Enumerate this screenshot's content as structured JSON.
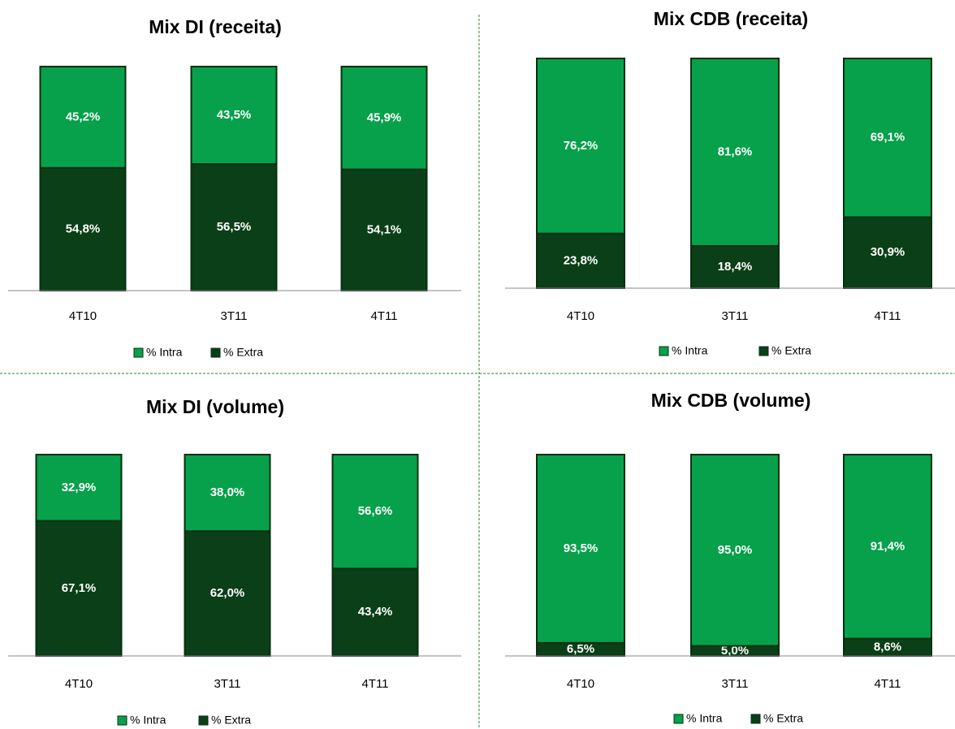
{
  "chart_data": [
    {
      "type": "bar",
      "stacked": true,
      "title": "Mix DI (receita)",
      "categories": [
        "4T10",
        "3T11",
        "4T11"
      ],
      "series": [
        {
          "name": "% Intra",
          "color": "#07a04b",
          "values": [
            45.2,
            43.5,
            45.9
          ],
          "value_labels": [
            "45,2%",
            "43,5%",
            "45,9%"
          ]
        },
        {
          "name": "% Extra",
          "color": "#0b3f17",
          "values": [
            54.8,
            56.5,
            54.1
          ],
          "value_labels": [
            "54,8%",
            "56,5%",
            "54,1%"
          ]
        }
      ]
    },
    {
      "type": "bar",
      "stacked": true,
      "title": "Mix CDB (receita)",
      "categories": [
        "4T10",
        "3T11",
        "4T11"
      ],
      "series": [
        {
          "name": "% Intra",
          "color": "#07a04b",
          "values": [
            76.2,
            81.6,
            69.1
          ],
          "value_labels": [
            "76,2%",
            "81,6%",
            "69,1%"
          ]
        },
        {
          "name": "% Extra",
          "color": "#0b3f17",
          "values": [
            23.8,
            18.4,
            30.9
          ],
          "value_labels": [
            "23,8%",
            "18,4%",
            "30,9%"
          ]
        }
      ]
    },
    {
      "type": "bar",
      "stacked": true,
      "title": "Mix DI (volume)",
      "categories": [
        "4T10",
        "3T11",
        "4T11"
      ],
      "series": [
        {
          "name": "% Intra",
          "color": "#07a04b",
          "values": [
            32.9,
            38.0,
            56.6
          ],
          "value_labels": [
            "32,9%",
            "38,0%",
            "56,6%"
          ]
        },
        {
          "name": "% Extra",
          "color": "#0b3f17",
          "values": [
            67.1,
            62.0,
            43.4
          ],
          "value_labels": [
            "67,1%",
            "62,0%",
            "43,4%"
          ]
        }
      ]
    },
    {
      "type": "bar",
      "stacked": true,
      "title": "Mix CDB (volume)",
      "categories": [
        "4T10",
        "3T11",
        "4T11"
      ],
      "series": [
        {
          "name": "% Intra",
          "color": "#07a04b",
          "values": [
            93.5,
            95.0,
            91.4
          ],
          "value_labels": [
            "93,5%",
            "95,0%",
            "91,4%"
          ]
        },
        {
          "name": "% Extra",
          "color": "#0b3f17",
          "values": [
            6.5,
            5.0,
            8.6
          ],
          "value_labels": [
            "6,5%",
            "5,0%",
            "8,6%"
          ]
        }
      ]
    }
  ]
}
